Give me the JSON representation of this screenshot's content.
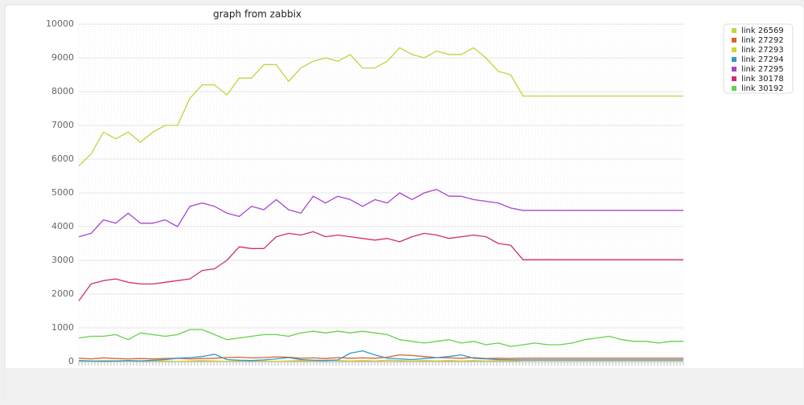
{
  "chart_data": {
    "type": "line",
    "title": "graph from zabbix",
    "categories": [
      null,
      null,
      null,
      null,
      null,
      null,
      null,
      null,
      null,
      null,
      null,
      null,
      null,
      null,
      null,
      null,
      null,
      null,
      null,
      null,
      null,
      null,
      null,
      null,
      null,
      null,
      null,
      null,
      null,
      null,
      null,
      null,
      null,
      null,
      null,
      null,
      null,
      null,
      null,
      null,
      null,
      null,
      null,
      null,
      null,
      null,
      null,
      null,
      null,
      null
    ],
    "ylim": [
      0,
      10000
    ],
    "yticks": [
      0,
      1000,
      2000,
      3000,
      4000,
      5000,
      6000,
      7000,
      8000,
      9000,
      10000
    ],
    "grid": true,
    "legend": "right",
    "series": [
      {
        "name": "link 26569",
        "color": "#bcd640",
        "values": [
          5800,
          6150,
          6800,
          6600,
          6800,
          6500,
          6800,
          7000,
          7000,
          7800,
          8200,
          8200,
          7900,
          8400,
          8400,
          8800,
          8800,
          8300,
          8700,
          8900,
          9000,
          8900,
          9100,
          8700,
          8700,
          8900,
          9300,
          9100,
          9000,
          9200,
          9100,
          9100,
          9300,
          9000,
          8600,
          8500,
          7870,
          7870,
          7870,
          7870,
          7870,
          7870,
          7870,
          7870,
          7870,
          7870,
          7870,
          7870,
          7870,
          7870
        ]
      },
      {
        "name": "link 27292",
        "color": "#d8642a",
        "values": [
          100,
          80,
          110,
          90,
          80,
          90,
          80,
          90,
          100,
          80,
          90,
          100,
          120,
          130,
          110,
          120,
          140,
          130,
          100,
          110,
          90,
          120,
          100,
          110,
          100,
          130,
          200,
          180,
          150,
          120,
          110,
          100,
          120,
          90,
          100,
          90,
          100,
          100,
          100,
          100,
          100,
          100,
          100,
          100,
          100,
          100,
          100,
          100,
          100,
          100
        ]
      },
      {
        "name": "link 27293",
        "color": "#d8d038",
        "values": [
          20,
          10,
          30,
          20,
          10,
          20,
          30,
          20,
          10,
          20,
          30,
          20,
          10,
          20,
          30,
          20,
          10,
          20,
          30,
          20,
          40,
          30,
          20,
          30,
          20,
          40,
          30,
          20,
          30,
          20,
          30,
          20,
          30,
          20,
          30,
          20,
          40,
          40,
          40,
          40,
          40,
          40,
          40,
          40,
          40,
          40,
          40,
          40,
          40,
          40
        ]
      },
      {
        "name": "link 27294",
        "color": "#3399cc",
        "values": [
          30,
          20,
          10,
          20,
          30,
          20,
          40,
          60,
          100,
          120,
          150,
          220,
          60,
          40,
          30,
          50,
          80,
          120,
          60,
          40,
          30,
          50,
          250,
          320,
          200,
          100,
          80,
          60,
          90,
          120,
          150,
          200,
          100,
          80,
          60,
          50,
          50,
          50,
          50,
          50,
          50,
          50,
          50,
          50,
          50,
          50,
          50,
          50,
          50,
          50
        ]
      },
      {
        "name": "link 27295",
        "color": "#a845d0",
        "values": [
          3700,
          3800,
          4200,
          4100,
          4400,
          4100,
          4100,
          4200,
          4000,
          4600,
          4700,
          4600,
          4400,
          4300,
          4600,
          4500,
          4800,
          4500,
          4400,
          4900,
          4700,
          4900,
          4800,
          4600,
          4800,
          4700,
          5000,
          4800,
          5000,
          5100,
          4900,
          4900,
          4800,
          4750,
          4700,
          4550,
          4480,
          4480,
          4480,
          4480,
          4480,
          4480,
          4480,
          4480,
          4480,
          4480,
          4480,
          4480,
          4480,
          4480
        ]
      },
      {
        "name": "link 30178",
        "color": "#d03068",
        "values": [
          1800,
          2300,
          2400,
          2450,
          2350,
          2300,
          2300,
          2350,
          2400,
          2450,
          2700,
          2750,
          3000,
          3400,
          3350,
          3350,
          3700,
          3800,
          3750,
          3850,
          3700,
          3750,
          3700,
          3650,
          3600,
          3650,
          3550,
          3700,
          3800,
          3750,
          3650,
          3700,
          3750,
          3700,
          3500,
          3450,
          3020,
          3020,
          3020,
          3020,
          3020,
          3020,
          3020,
          3020,
          3020,
          3020,
          3020,
          3020,
          3020,
          3020
        ]
      },
      {
        "name": "link 30192",
        "color": "#66d24a",
        "values": [
          700,
          750,
          750,
          800,
          650,
          850,
          800,
          750,
          800,
          950,
          950,
          800,
          650,
          700,
          750,
          800,
          800,
          750,
          850,
          900,
          850,
          900,
          850,
          900,
          850,
          800,
          650,
          600,
          550,
          600,
          650,
          550,
          600,
          500,
          550,
          450,
          500,
          550,
          500,
          500,
          550,
          650,
          700,
          750,
          650,
          600,
          600,
          550,
          600,
          600
        ]
      }
    ]
  }
}
